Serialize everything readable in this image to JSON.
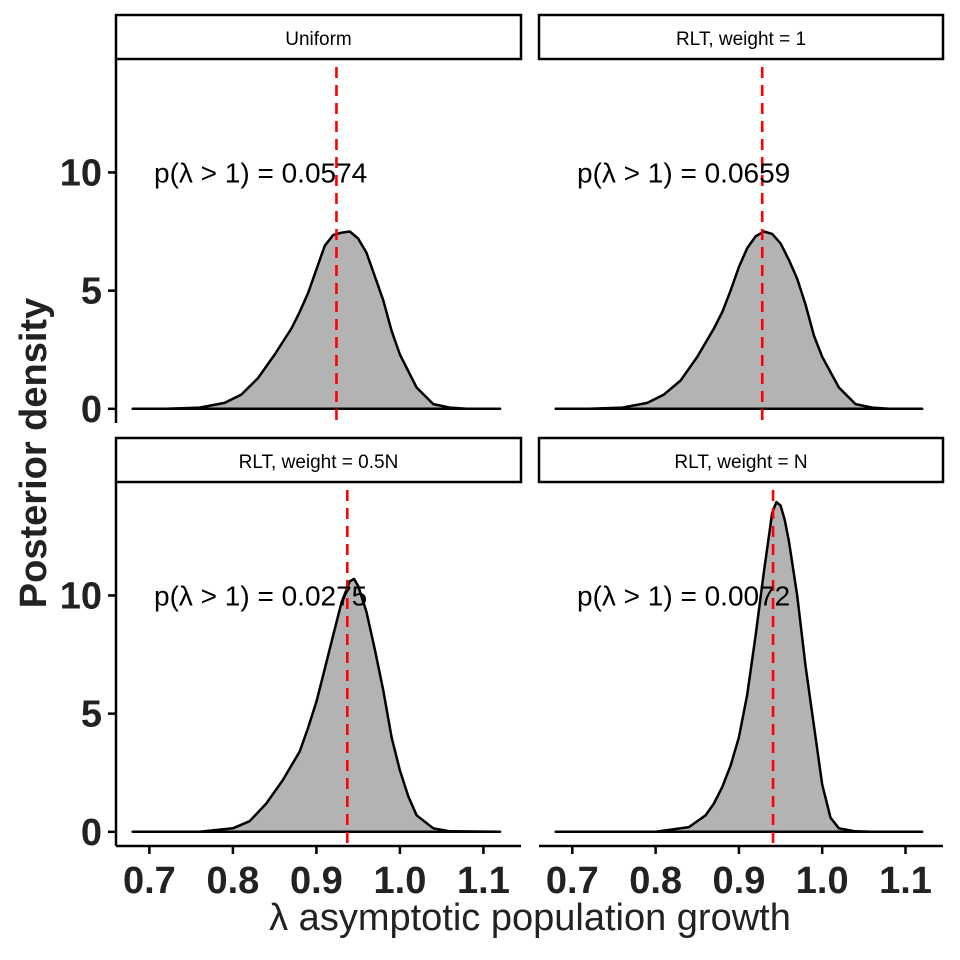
{
  "chart_data": {
    "type": "area",
    "xlabel": "λ asymptotic population growth",
    "ylabel": "Posterior density",
    "xlim": [
      0.66,
      1.145
    ],
    "ylim": [
      -0.6,
      14.8
    ],
    "xticks": [
      0.7,
      0.8,
      0.9,
      1.0,
      1.1
    ],
    "xtick_labels": [
      "0.7",
      "0.8",
      "0.9",
      "1.0",
      "1.1"
    ],
    "yticks": [
      0,
      5,
      10
    ],
    "ytick_labels": [
      "0",
      "5",
      "10"
    ],
    "grid": false,
    "annotation_prefix": "p(λ > 1) = ",
    "panels": [
      {
        "strip": "Uniform",
        "prob": "0.0574",
        "mean": 0.924,
        "density": {
          "x": [
            0.68,
            0.72,
            0.76,
            0.79,
            0.81,
            0.83,
            0.85,
            0.87,
            0.88,
            0.89,
            0.9,
            0.905,
            0.91,
            0.92,
            0.93,
            0.94,
            0.95,
            0.96,
            0.97,
            0.98,
            0.99,
            1.0,
            1.02,
            1.04,
            1.06,
            1.08,
            1.12
          ],
          "y": [
            0,
            0,
            0.05,
            0.25,
            0.6,
            1.3,
            2.3,
            3.4,
            4.1,
            4.9,
            5.9,
            6.4,
            6.9,
            7.35,
            7.45,
            7.5,
            7.2,
            6.6,
            5.6,
            4.6,
            3.3,
            2.3,
            0.9,
            0.2,
            0.05,
            0,
            0
          ]
        }
      },
      {
        "strip": "RLT, weight = 1",
        "prob": "0.0659",
        "mean": 0.928,
        "density": {
          "x": [
            0.68,
            0.72,
            0.76,
            0.79,
            0.81,
            0.83,
            0.85,
            0.87,
            0.88,
            0.89,
            0.9,
            0.91,
            0.92,
            0.93,
            0.94,
            0.95,
            0.96,
            0.97,
            0.98,
            0.99,
            1.0,
            1.02,
            1.04,
            1.06,
            1.08,
            1.12
          ],
          "y": [
            0,
            0,
            0.05,
            0.25,
            0.6,
            1.2,
            2.2,
            3.4,
            4.1,
            5.0,
            6.0,
            6.8,
            7.3,
            7.5,
            7.4,
            7.0,
            6.3,
            5.5,
            4.4,
            3.1,
            2.2,
            0.9,
            0.2,
            0.05,
            0,
            0
          ]
        }
      },
      {
        "strip": "RLT, weight = 0.5N",
        "prob": "0.0275",
        "mean": 0.937,
        "density": {
          "x": [
            0.68,
            0.76,
            0.8,
            0.82,
            0.84,
            0.86,
            0.88,
            0.89,
            0.9,
            0.91,
            0.92,
            0.93,
            0.94,
            0.945,
            0.95,
            0.96,
            0.97,
            0.98,
            0.99,
            1.0,
            1.01,
            1.02,
            1.04,
            1.06,
            1.12
          ],
          "y": [
            0,
            0,
            0.15,
            0.45,
            1.2,
            2.2,
            3.4,
            4.4,
            5.5,
            6.9,
            8.3,
            9.7,
            10.6,
            10.7,
            10.4,
            9.3,
            7.7,
            6.0,
            4.0,
            2.6,
            1.5,
            0.7,
            0.15,
            0.02,
            0
          ]
        }
      },
      {
        "strip": "RLT, weight = N",
        "prob": "0.0072",
        "mean": 0.941,
        "density": {
          "x": [
            0.68,
            0.8,
            0.84,
            0.86,
            0.87,
            0.88,
            0.89,
            0.9,
            0.91,
            0.92,
            0.93,
            0.94,
            0.945,
            0.95,
            0.955,
            0.96,
            0.97,
            0.98,
            0.99,
            1.0,
            1.01,
            1.02,
            1.04,
            1.06,
            1.12
          ],
          "y": [
            0,
            0,
            0.2,
            0.7,
            1.2,
            1.9,
            2.8,
            4.0,
            5.8,
            8.3,
            11.0,
            13.5,
            13.95,
            13.8,
            13.2,
            12.3,
            10.0,
            7.0,
            4.5,
            2.0,
            0.6,
            0.15,
            0.02,
            0,
            0
          ]
        }
      }
    ]
  }
}
